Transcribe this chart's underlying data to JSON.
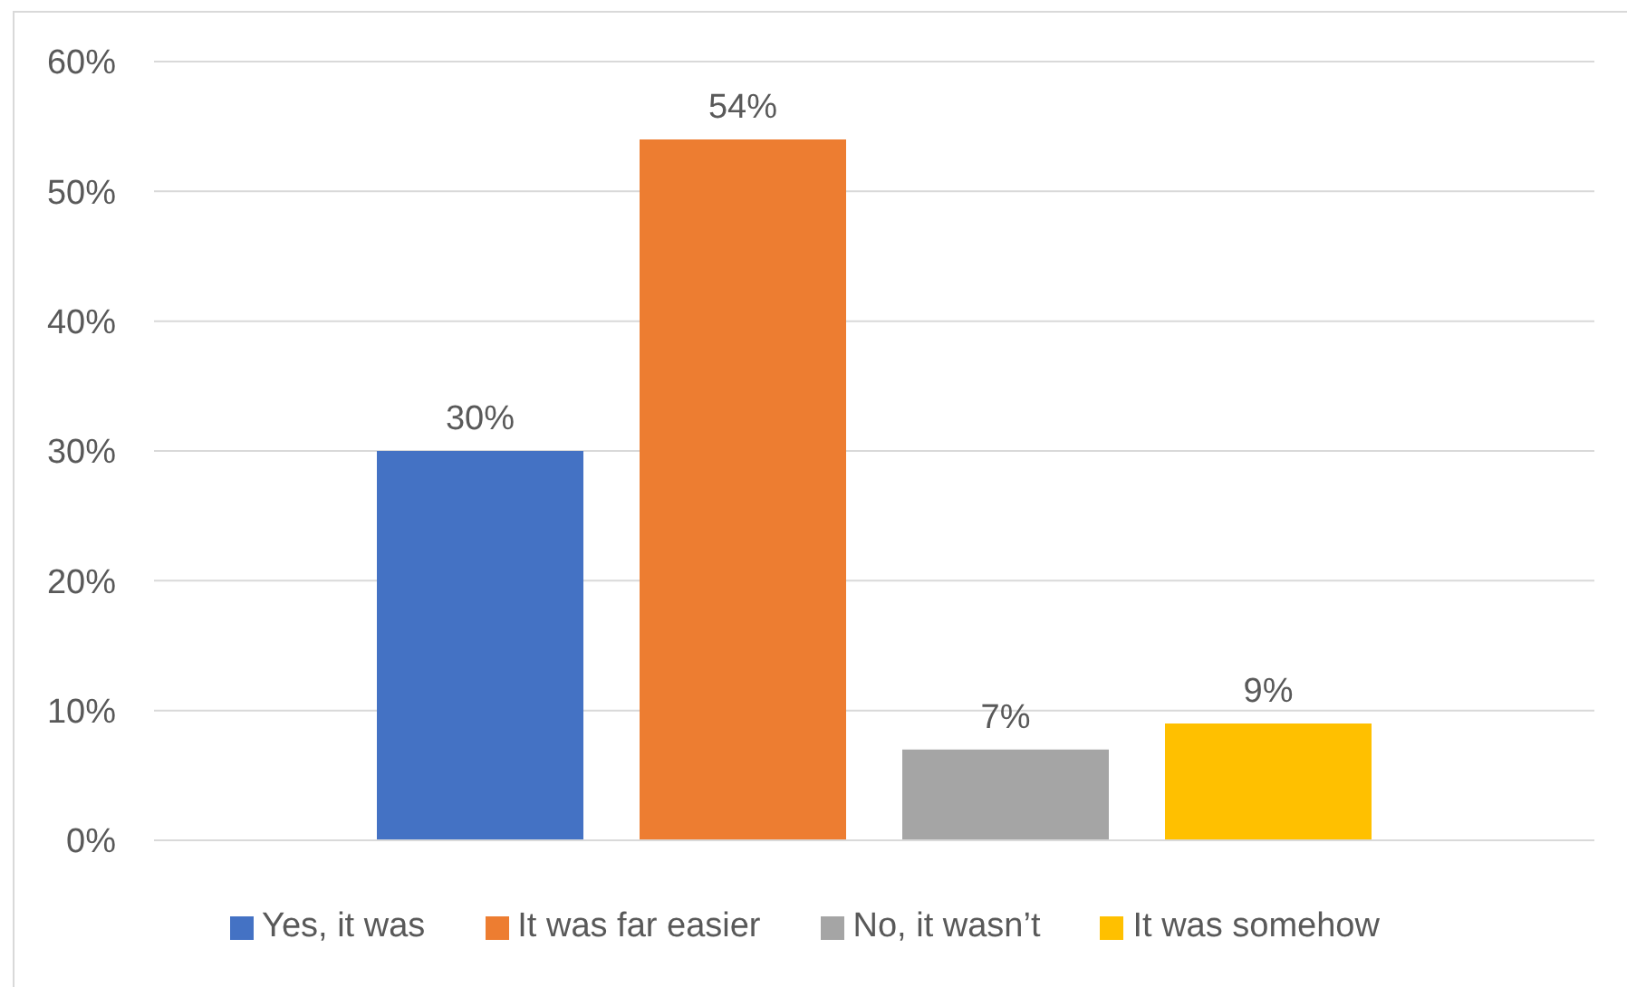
{
  "chart_data": {
    "type": "bar",
    "categories": [
      null
    ],
    "series": [
      {
        "name": "Yes, it was",
        "color": "#4472c4",
        "values": [
          30
        ],
        "value_labels": [
          "30%"
        ]
      },
      {
        "name": "It was far easier",
        "color": "#ed7d31",
        "values": [
          54
        ],
        "value_labels": [
          "54%"
        ]
      },
      {
        "name": "No, it wasn’t",
        "color": "#a5a5a5",
        "values": [
          7
        ],
        "value_labels": [
          "7%"
        ]
      },
      {
        "name": "It was somehow",
        "color": "#ffc000",
        "values": [
          9
        ],
        "value_labels": [
          "9%"
        ]
      }
    ],
    "ylim": [
      0,
      60
    ],
    "yticks": [
      {
        "value": 0,
        "label": "0%"
      },
      {
        "value": 10,
        "label": "10%"
      },
      {
        "value": 20,
        "label": "20%"
      },
      {
        "value": 30,
        "label": "30%"
      },
      {
        "value": 40,
        "label": "40%"
      },
      {
        "value": 50,
        "label": "50%"
      },
      {
        "value": 60,
        "label": "60%"
      }
    ],
    "grid": "y",
    "legend": "bottom",
    "tick_labels": "y"
  }
}
